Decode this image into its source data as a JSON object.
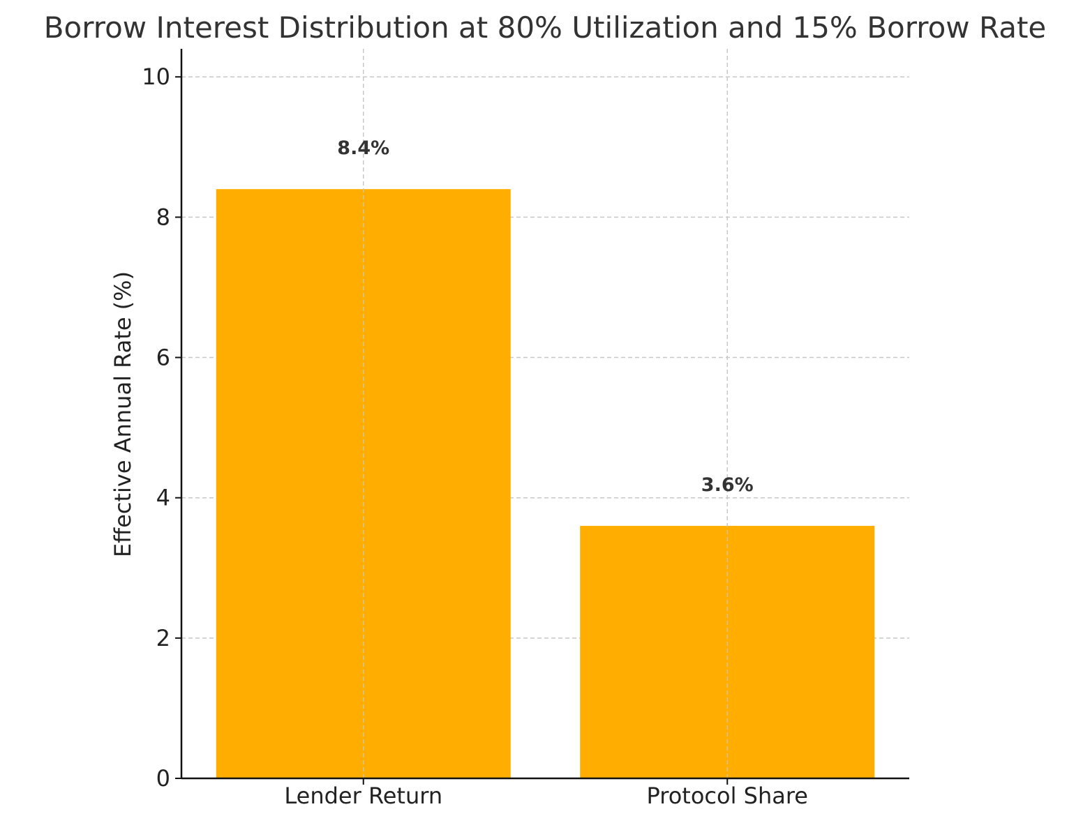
{
  "chart_data": {
    "type": "bar",
    "title": "Borrow Interest Distribution at 80% Utilization and 15% Borrow Rate",
    "xlabel": "",
    "ylabel": "Effective Annual Rate (%)",
    "categories": [
      "Lender Return",
      "Protocol Share"
    ],
    "values": [
      8.4,
      3.6
    ],
    "data_labels": [
      "8.4%",
      "3.6%"
    ],
    "ylim": [
      0,
      10.4
    ],
    "yticks": [
      0,
      2,
      4,
      6,
      8,
      10
    ],
    "ytick_labels": [
      "0",
      "2",
      "4",
      "6",
      "8",
      "10"
    ],
    "grid": true,
    "legend": "none",
    "colors": {
      "bar": "#FFAE00",
      "grid": "#c8c8c8",
      "axis": "#111111"
    }
  }
}
